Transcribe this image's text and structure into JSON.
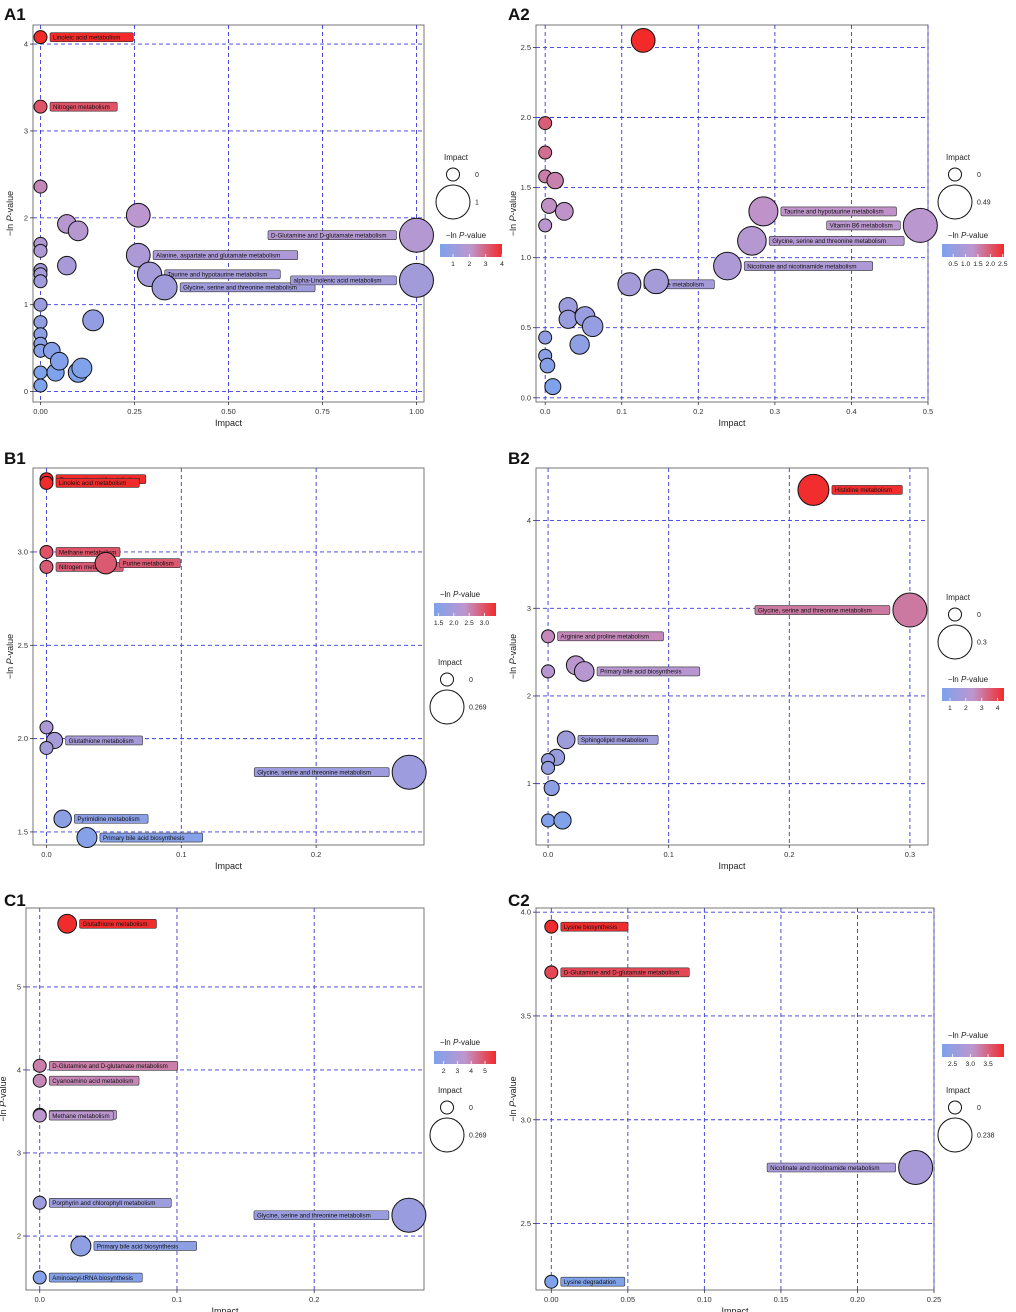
{
  "chart_data": [
    {
      "panel_label": "A1",
      "type": "scatter",
      "xlabel": "Impact",
      "ylabel_prefix": "−ln ",
      "ylabel_italic": "P",
      "ylabel_suffix": "-value",
      "xlim": [
        -0.02,
        1.02
      ],
      "ylim": [
        -0.12,
        4.22
      ],
      "xticks": [
        0,
        0.25,
        0.5,
        0.75,
        1.0
      ],
      "xtick_labels": [
        "0.00",
        "0.25",
        "0.50",
        "0.75",
        "1.00"
      ],
      "yticks": [
        0,
        1,
        2,
        3,
        4
      ],
      "ytick_labels": [
        "0",
        "1",
        "2",
        "3",
        "4"
      ],
      "size_legend": {
        "title": "Impact",
        "labels": [
          "0",
          "1"
        ],
        "max": 1
      },
      "color_legend": {
        "title_prefix": "−ln ",
        "title_italic": "P",
        "title_suffix": "-value",
        "min": 0.2,
        "max": 4.0,
        "ticks": [
          1,
          2,
          3,
          4
        ],
        "tick_labels": [
          "1",
          "2",
          "3",
          "4"
        ]
      },
      "points": [
        {
          "x": 0.0,
          "y": 4.08,
          "label": "Linoleic acid metabolism"
        },
        {
          "x": 0.0,
          "y": 3.28,
          "label": "Nitrogen metabolism"
        },
        {
          "x": 0.0,
          "y": 2.36,
          "label": ""
        },
        {
          "x": 0.0,
          "y": 1.7,
          "label": ""
        },
        {
          "x": 0.0,
          "y": 1.62,
          "label": ""
        },
        {
          "x": 0.0,
          "y": 1.4,
          "label": ""
        },
        {
          "x": 0.0,
          "y": 1.35,
          "label": ""
        },
        {
          "x": 0.0,
          "y": 1.27,
          "label": ""
        },
        {
          "x": 0.0,
          "y": 1.0,
          "label": ""
        },
        {
          "x": 0.0,
          "y": 0.8,
          "label": ""
        },
        {
          "x": 0.0,
          "y": 0.66,
          "label": ""
        },
        {
          "x": 0.0,
          "y": 0.55,
          "label": ""
        },
        {
          "x": 0.0,
          "y": 0.47,
          "label": ""
        },
        {
          "x": 0.0,
          "y": 0.22,
          "label": ""
        },
        {
          "x": 0.0,
          "y": 0.07,
          "label": ""
        },
        {
          "x": 0.03,
          "y": 0.47,
          "label": ""
        },
        {
          "x": 0.04,
          "y": 0.22,
          "label": ""
        },
        {
          "x": 0.05,
          "y": 0.35,
          "label": ""
        },
        {
          "x": 0.07,
          "y": 1.93,
          "label": ""
        },
        {
          "x": 0.07,
          "y": 1.45,
          "label": ""
        },
        {
          "x": 0.1,
          "y": 1.85,
          "label": ""
        },
        {
          "x": 0.1,
          "y": 0.22,
          "label": ""
        },
        {
          "x": 0.11,
          "y": 0.27,
          "label": ""
        },
        {
          "x": 0.14,
          "y": 0.82,
          "label": ""
        },
        {
          "x": 0.26,
          "y": 2.03,
          "label": ""
        },
        {
          "x": 0.26,
          "y": 1.57,
          "label": "Alanine, aspartate and glutamate metabolism"
        },
        {
          "x": 0.29,
          "y": 1.35,
          "label": "Taurine and hypotaurine metabolism"
        },
        {
          "x": 0.33,
          "y": 1.2,
          "label": "Glycine, serine and threonine metabolism"
        },
        {
          "x": 1.0,
          "y": 1.8,
          "label": "D-Glutamine and D-glutamate metabolism"
        },
        {
          "x": 1.0,
          "y": 1.28,
          "label": "alpha-Linolenic acid metabolism"
        }
      ]
    },
    {
      "panel_label": "A2",
      "type": "scatter",
      "xlabel": "Impact",
      "ylabel_prefix": "−ln ",
      "ylabel_italic": "P",
      "ylabel_suffix": "-value",
      "xlim": [
        -0.012,
        0.5
      ],
      "ylim": [
        -0.03,
        2.66
      ],
      "xticks": [
        0,
        0.1,
        0.2,
        0.3,
        0.4,
        0.5
      ],
      "xtick_labels": [
        "0.0",
        "0.1",
        "0.2",
        "0.3",
        "0.4",
        "0.5"
      ],
      "yticks": [
        0,
        0.5,
        1.0,
        1.5,
        2.0,
        2.5
      ],
      "ytick_labels": [
        "0.0",
        "0.5",
        "1.0",
        "1.5",
        "2.0",
        "2.5"
      ],
      "size_legend": {
        "title": "Impact",
        "labels": [
          "0",
          "0.49"
        ],
        "max": 0.49
      },
      "color_legend": {
        "title_prefix": "−ln ",
        "title_italic": "P",
        "title_suffix": "-value",
        "min": 0.05,
        "max": 2.55,
        "ticks": [
          0.5,
          1.0,
          1.5,
          2.0,
          2.5
        ],
        "tick_labels": [
          "0.5",
          "1.0",
          "1.5",
          "2.0",
          "2.5"
        ]
      },
      "points": [
        {
          "x": 0.128,
          "y": 2.55,
          "label": ""
        },
        {
          "x": 0.0,
          "y": 1.96,
          "label": ""
        },
        {
          "x": 0.0,
          "y": 1.75,
          "label": ""
        },
        {
          "x": 0.0,
          "y": 1.58,
          "label": ""
        },
        {
          "x": 0.013,
          "y": 1.55,
          "label": ""
        },
        {
          "x": 0.005,
          "y": 1.37,
          "label": ""
        },
        {
          "x": 0.025,
          "y": 1.33,
          "label": ""
        },
        {
          "x": 0.0,
          "y": 1.23,
          "label": ""
        },
        {
          "x": 0.0,
          "y": 0.43,
          "label": ""
        },
        {
          "x": 0.0,
          "y": 0.3,
          "label": ""
        },
        {
          "x": 0.003,
          "y": 0.23,
          "label": ""
        },
        {
          "x": 0.01,
          "y": 0.08,
          "label": ""
        },
        {
          "x": 0.03,
          "y": 0.65,
          "label": ""
        },
        {
          "x": 0.03,
          "y": 0.56,
          "label": ""
        },
        {
          "x": 0.045,
          "y": 0.38,
          "label": ""
        },
        {
          "x": 0.052,
          "y": 0.58,
          "label": ""
        },
        {
          "x": 0.062,
          "y": 0.51,
          "label": ""
        },
        {
          "x": 0.11,
          "y": 0.81,
          "label": "Histidine metabolism"
        },
        {
          "x": 0.145,
          "y": 0.83,
          "label": ""
        },
        {
          "x": 0.238,
          "y": 0.94,
          "label": "Nicotinate and nicotinamide metabolism"
        },
        {
          "x": 0.27,
          "y": 1.12,
          "label": "Glycine, serine and threonine metabolism"
        },
        {
          "x": 0.285,
          "y": 1.33,
          "label": "Taurine and hypotaurine metabolism"
        },
        {
          "x": 0.49,
          "y": 1.23,
          "label": "Vitamin B6 metabolism"
        }
      ]
    },
    {
      "panel_label": "B1",
      "type": "scatter",
      "xlabel": "Impact",
      "ylabel_prefix": "−ln ",
      "ylabel_italic": "P",
      "ylabel_suffix": "-value",
      "xlim": [
        -0.01,
        0.28
      ],
      "ylim": [
        1.43,
        3.45
      ],
      "xticks": [
        0,
        0.1,
        0.2
      ],
      "xtick_labels": [
        "0.0",
        "0.1",
        "0.2"
      ],
      "yticks": [
        1.5,
        2.0,
        2.5,
        3.0
      ],
      "ytick_labels": [
        "1.5",
        "2.0",
        "2.5",
        "3.0"
      ],
      "size_legend": {
        "title": "Impact",
        "labels": [
          "0",
          "0.269"
        ],
        "max": 0.269
      },
      "color_legend": {
        "title_prefix": "−ln ",
        "title_italic": "P",
        "title_suffix": "-value",
        "min": 1.35,
        "max": 3.38,
        "ticks": [
          1.5,
          2.0,
          2.5,
          3.0
        ],
        "tick_labels": [
          "1.5",
          "2.0",
          "2.5",
          "3.0"
        ]
      },
      "points": [
        {
          "x": 0.0,
          "y": 3.39,
          "label": "Cyanoamino acid metabolism"
        },
        {
          "x": 0.0,
          "y": 3.37,
          "label": "Linoleic acid metabolism"
        },
        {
          "x": 0.0,
          "y": 3.0,
          "label": "Methane metabolism"
        },
        {
          "x": 0.0,
          "y": 2.92,
          "label": "Nitrogen metabolism"
        },
        {
          "x": 0.044,
          "y": 2.94,
          "label": "Purine metabolism"
        },
        {
          "x": 0.0,
          "y": 2.06,
          "label": ""
        },
        {
          "x": 0.006,
          "y": 1.99,
          "label": "Glutathione metabolism"
        },
        {
          "x": 0.0,
          "y": 1.95,
          "label": ""
        },
        {
          "x": 0.269,
          "y": 1.82,
          "label": "Glycine, serine and threonine metabolism"
        },
        {
          "x": 0.012,
          "y": 1.57,
          "label": "Pyrimidine metabolism"
        },
        {
          "x": 0.03,
          "y": 1.47,
          "label": "Primary bile acid biosynthesis"
        }
      ]
    },
    {
      "panel_label": "B2",
      "type": "scatter",
      "xlabel": "Impact",
      "ylabel_prefix": "−ln ",
      "ylabel_italic": "P",
      "ylabel_suffix": "-value",
      "xlim": [
        -0.01,
        0.315
      ],
      "ylim": [
        0.3,
        4.6
      ],
      "xticks": [
        0,
        0.1,
        0.2,
        0.3
      ],
      "xtick_labels": [
        "0.0",
        "0.1",
        "0.2",
        "0.3"
      ],
      "yticks": [
        1,
        2,
        3,
        4
      ],
      "ytick_labels": [
        "1",
        "2",
        "3",
        "4"
      ],
      "size_legend": {
        "title": "Impact",
        "labels": [
          "0",
          "0.3"
        ],
        "max": 0.3
      },
      "color_legend": {
        "title_prefix": "−ln ",
        "title_italic": "P",
        "title_suffix": "-value",
        "min": 0.5,
        "max": 4.4,
        "ticks": [
          1,
          2,
          3,
          4
        ],
        "tick_labels": [
          "1",
          "2",
          "3",
          "4"
        ]
      },
      "points": [
        {
          "x": 0.22,
          "y": 4.35,
          "label": "Histidine metabolism"
        },
        {
          "x": 0.3,
          "y": 2.98,
          "label": "Glycine, serine and threonine metabolism"
        },
        {
          "x": 0.0,
          "y": 2.68,
          "label": "Arginine and proline metabolism"
        },
        {
          "x": 0.023,
          "y": 2.35,
          "label": ""
        },
        {
          "x": 0.03,
          "y": 2.28,
          "label": "Primary bile acid biosynthesis"
        },
        {
          "x": 0.0,
          "y": 2.28,
          "label": ""
        },
        {
          "x": 0.015,
          "y": 1.5,
          "label": "Sphingolipid metabolism"
        },
        {
          "x": 0.007,
          "y": 1.3,
          "label": ""
        },
        {
          "x": 0.0,
          "y": 1.27,
          "label": ""
        },
        {
          "x": 0.0,
          "y": 1.18,
          "label": ""
        },
        {
          "x": 0.003,
          "y": 0.95,
          "label": ""
        },
        {
          "x": 0.0,
          "y": 0.58,
          "label": ""
        },
        {
          "x": 0.012,
          "y": 0.58,
          "label": ""
        }
      ]
    },
    {
      "panel_label": "C1",
      "type": "scatter",
      "xlabel": "Impact",
      "ylabel_prefix": "−ln ",
      "ylabel_italic": "P",
      "ylabel_suffix": "-value",
      "xlim": [
        -0.01,
        0.28
      ],
      "ylim": [
        1.35,
        5.95
      ],
      "xticks": [
        0,
        0.1,
        0.2
      ],
      "xtick_labels": [
        "0.0",
        "0.1",
        "0.2"
      ],
      "yticks": [
        2,
        3,
        4,
        5
      ],
      "ytick_labels": [
        "2",
        "3",
        "4",
        "5"
      ],
      "size_legend": {
        "title": "Impact",
        "labels": [
          "0",
          "0.269"
        ],
        "max": 0.269
      },
      "color_legend": {
        "title_prefix": "−ln ",
        "title_italic": "P",
        "title_suffix": "-value",
        "min": 1.3,
        "max": 5.8,
        "ticks": [
          2,
          3,
          4,
          5
        ],
        "tick_labels": [
          "2",
          "3",
          "4",
          "5"
        ]
      },
      "points": [
        {
          "x": 0.02,
          "y": 5.76,
          "label": "Glutathione metabolism"
        },
        {
          "x": 0.0,
          "y": 4.05,
          "label": "D-Glutamine and D-glutamate metabolism"
        },
        {
          "x": 0.0,
          "y": 3.87,
          "label": "Cyanoamino acid metabolism"
        },
        {
          "x": 0.0,
          "y": 3.46,
          "label": "Nitrogen metabolism"
        },
        {
          "x": 0.0,
          "y": 3.45,
          "label": "Methane metabolism"
        },
        {
          "x": 0.0,
          "y": 2.4,
          "label": "Porphyrin and chlorophyll metabolism"
        },
        {
          "x": 0.269,
          "y": 2.25,
          "label": "Glycine, serine and threonine metabolism"
        },
        {
          "x": 0.03,
          "y": 1.88,
          "label": "Primary bile acid biosynthesis"
        },
        {
          "x": 0.0,
          "y": 1.5,
          "label": "Aminoacyl-tRNA biosynthesis"
        }
      ]
    },
    {
      "panel_label": "C2",
      "type": "scatter",
      "xlabel": "Impact",
      "ylabel_prefix": "−ln ",
      "ylabel_italic": "P",
      "ylabel_suffix": "-value",
      "xlim": [
        -0.01,
        0.25
      ],
      "ylim": [
        2.18,
        4.02
      ],
      "xticks": [
        0,
        0.05,
        0.1,
        0.15,
        0.2,
        0.25
      ],
      "xtick_labels": [
        "0.00",
        "0.05",
        "0.10",
        "0.15",
        "0.20",
        "0.25"
      ],
      "yticks": [
        2.5,
        3.0,
        3.5,
        4.0
      ],
      "ytick_labels": [
        "2.5",
        "3.0",
        "3.5",
        "4.0"
      ],
      "size_legend": {
        "title": "Impact",
        "labels": [
          "0",
          "0.238"
        ],
        "max": 0.238
      },
      "color_legend": {
        "title_prefix": "−ln ",
        "title_italic": "P",
        "title_suffix": "-value",
        "min": 2.2,
        "max": 3.95,
        "ticks": [
          2.5,
          3.0,
          3.5
        ],
        "tick_labels": [
          "2.5",
          "3.0",
          "3.5"
        ]
      },
      "points": [
        {
          "x": 0.0,
          "y": 3.93,
          "label": "Lysine biosynthesis"
        },
        {
          "x": 0.0,
          "y": 3.71,
          "label": "D-Glutamine and D-glutamate metabolism"
        },
        {
          "x": 0.238,
          "y": 2.77,
          "label": "Nicotinate and nicotinamide metabolism"
        },
        {
          "x": 0.0,
          "y": 2.22,
          "label": "Lysine degradation"
        }
      ]
    }
  ]
}
